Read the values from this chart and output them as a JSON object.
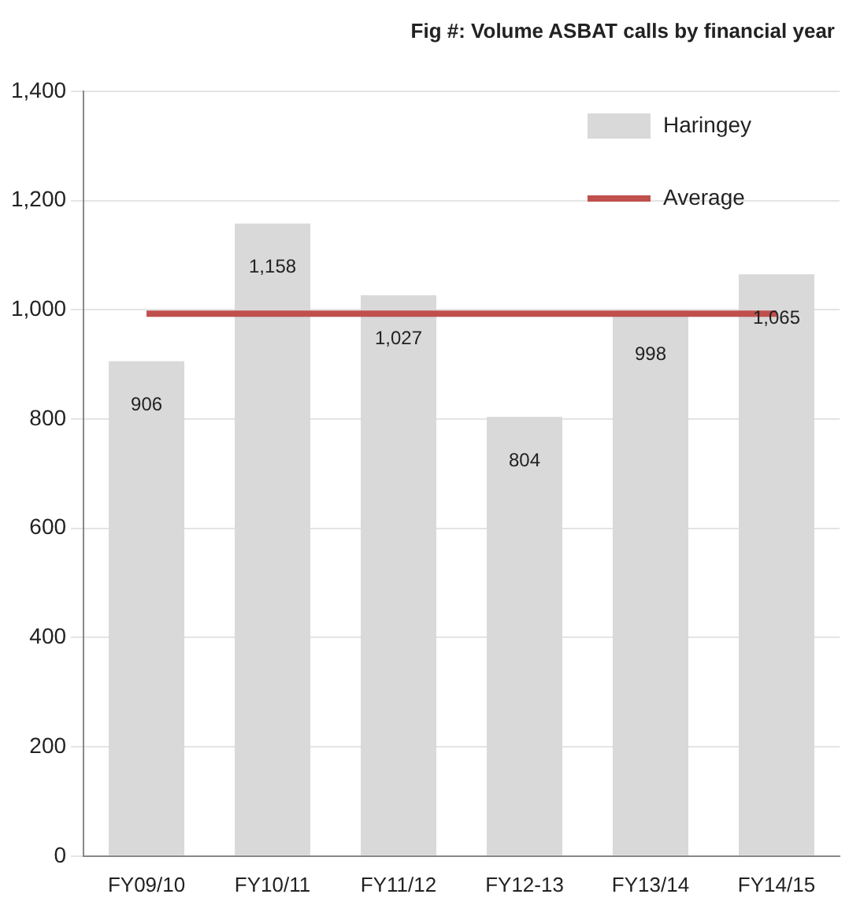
{
  "chart_data": {
    "type": "bar",
    "title": "Fig #: Volume ASBAT calls by financial year",
    "categories": [
      "FY09/10",
      "FY10/11",
      "FY11/12",
      "FY12-13",
      "FY13/14",
      "FY14/15"
    ],
    "series": [
      {
        "name": "Haringey",
        "color": "#d9d9d9",
        "values": [
          906,
          1158,
          1027,
          804,
          998,
          1065
        ],
        "value_labels": [
          "906",
          "1,158",
          "1,027",
          "804",
          "998",
          "1,065"
        ]
      },
      {
        "name": "Average",
        "type": "line",
        "color": "#c0504d",
        "values": [
          993,
          993,
          993,
          993,
          993,
          993
        ]
      }
    ],
    "ylim": [
      0,
      1400
    ],
    "yticks": [
      {
        "value": 0,
        "label": "0"
      },
      {
        "value": 200,
        "label": "200"
      },
      {
        "value": 400,
        "label": "400"
      },
      {
        "value": 600,
        "label": "600"
      },
      {
        "value": 800,
        "label": "800"
      },
      {
        "value": 1000,
        "label": "1,000"
      },
      {
        "value": 1200,
        "label": "1,200"
      },
      {
        "value": 1400,
        "label": "1,400"
      }
    ],
    "grid": "y",
    "legend": "top right",
    "marker": "none"
  }
}
